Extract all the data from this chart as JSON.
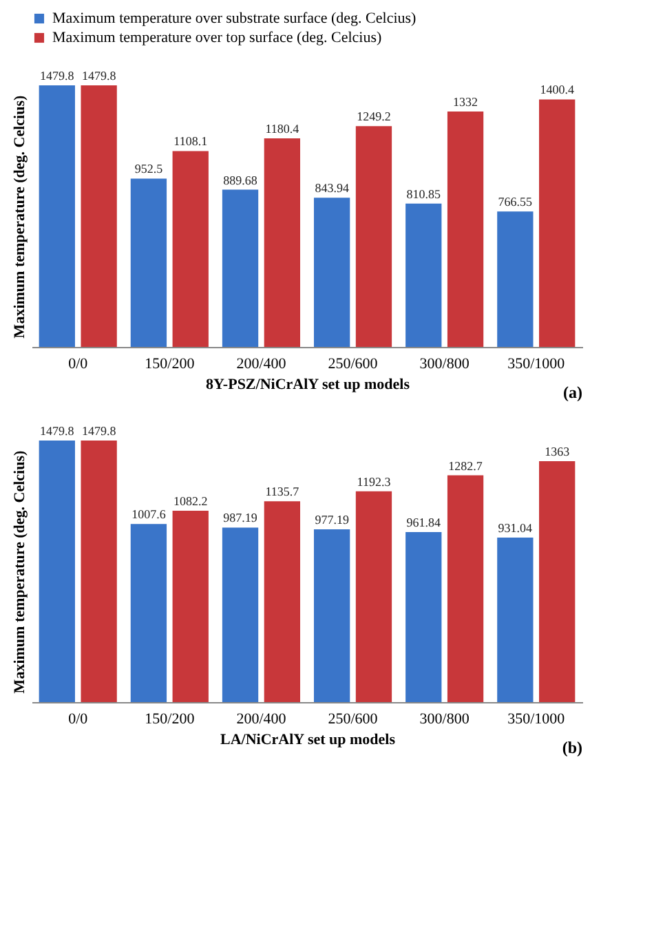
{
  "chart_data": [
    {
      "type": "bar",
      "ylabel": "Maximum temperature (deg. Celcius)",
      "xlabel": "8Y-PSZ/NiCrAlY set up models",
      "annotations": [
        "(a)"
      ],
      "legend": "top",
      "data_labels": true,
      "categories": [
        "0/0",
        "150/200",
        "200/400",
        "250/600",
        "300/800",
        "350/1000"
      ],
      "series": [
        {
          "name": "Maximum temperature over substrate surface (deg. Celcius)",
          "color": "#3a75c9",
          "values": [
            1479.8,
            952.5,
            889.68,
            843.94,
            810.85,
            766.55
          ]
        },
        {
          "name": "Maximum temperature over top surface (deg. Celcius)",
          "color": "#c8373a",
          "values": [
            1479.8,
            1108.1,
            1180.4,
            1249.2,
            1332,
            1400.4
          ]
        }
      ]
    },
    {
      "type": "bar",
      "ylabel": "Maximum temperature (deg. Celcius)",
      "xlabel": "LA/NiCrAlY set up models",
      "annotations": [
        "(b)"
      ],
      "legend": "top",
      "data_labels": true,
      "categories": [
        "0/0",
        "150/200",
        "200/400",
        "250/600",
        "300/800",
        "350/1000"
      ],
      "series": [
        {
          "name": "Maximum temperature over substrate surface (deg. Celcius)",
          "color": "#3a75c9",
          "values": [
            1479.8,
            1007.6,
            987.19,
            977.19,
            961.84,
            931.04
          ]
        },
        {
          "name": "Maximum temperature over top surface (deg. Celcius)",
          "color": "#c8373a",
          "values": [
            1479.8,
            1082.2,
            1135.7,
            1192.3,
            1282.7,
            1363
          ]
        }
      ]
    }
  ]
}
